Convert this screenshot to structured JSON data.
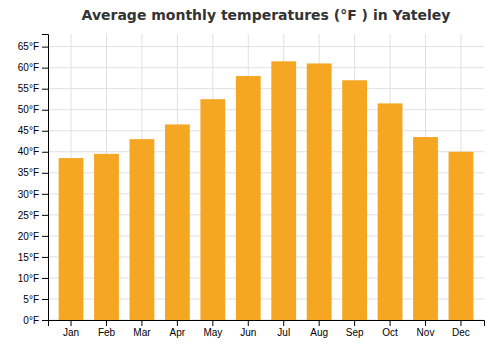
{
  "chart_data": {
    "type": "bar",
    "title": "Average monthly temperatures (°F ) in Yateley",
    "categories": [
      "Jan",
      "Feb",
      "Mar",
      "Apr",
      "May",
      "Jun",
      "Jul",
      "Aug",
      "Sep",
      "Oct",
      "Nov",
      "Dec"
    ],
    "values": [
      38.5,
      39.5,
      43.0,
      46.5,
      52.5,
      58.0,
      61.5,
      61.0,
      57.0,
      51.5,
      43.5,
      40.0
    ],
    "color": "#F5A623",
    "ylim": [
      0,
      68
    ],
    "yticks": [
      {
        "value": 0,
        "label": "0°F"
      },
      {
        "value": 5,
        "label": "5°F"
      },
      {
        "value": 10,
        "label": "10°F"
      },
      {
        "value": 15,
        "label": "15°F"
      },
      {
        "value": 20,
        "label": "20°F"
      },
      {
        "value": 25,
        "label": "25°F"
      },
      {
        "value": 30,
        "label": "30°F"
      },
      {
        "value": 35,
        "label": "35°F"
      },
      {
        "value": 40,
        "label": "40°F"
      },
      {
        "value": 45,
        "label": "45°F"
      },
      {
        "value": 50,
        "label": "50°F"
      },
      {
        "value": 55,
        "label": "55°F"
      },
      {
        "value": 60,
        "label": "60°F"
      },
      {
        "value": 65,
        "label": "65°F"
      }
    ],
    "grid": true
  }
}
